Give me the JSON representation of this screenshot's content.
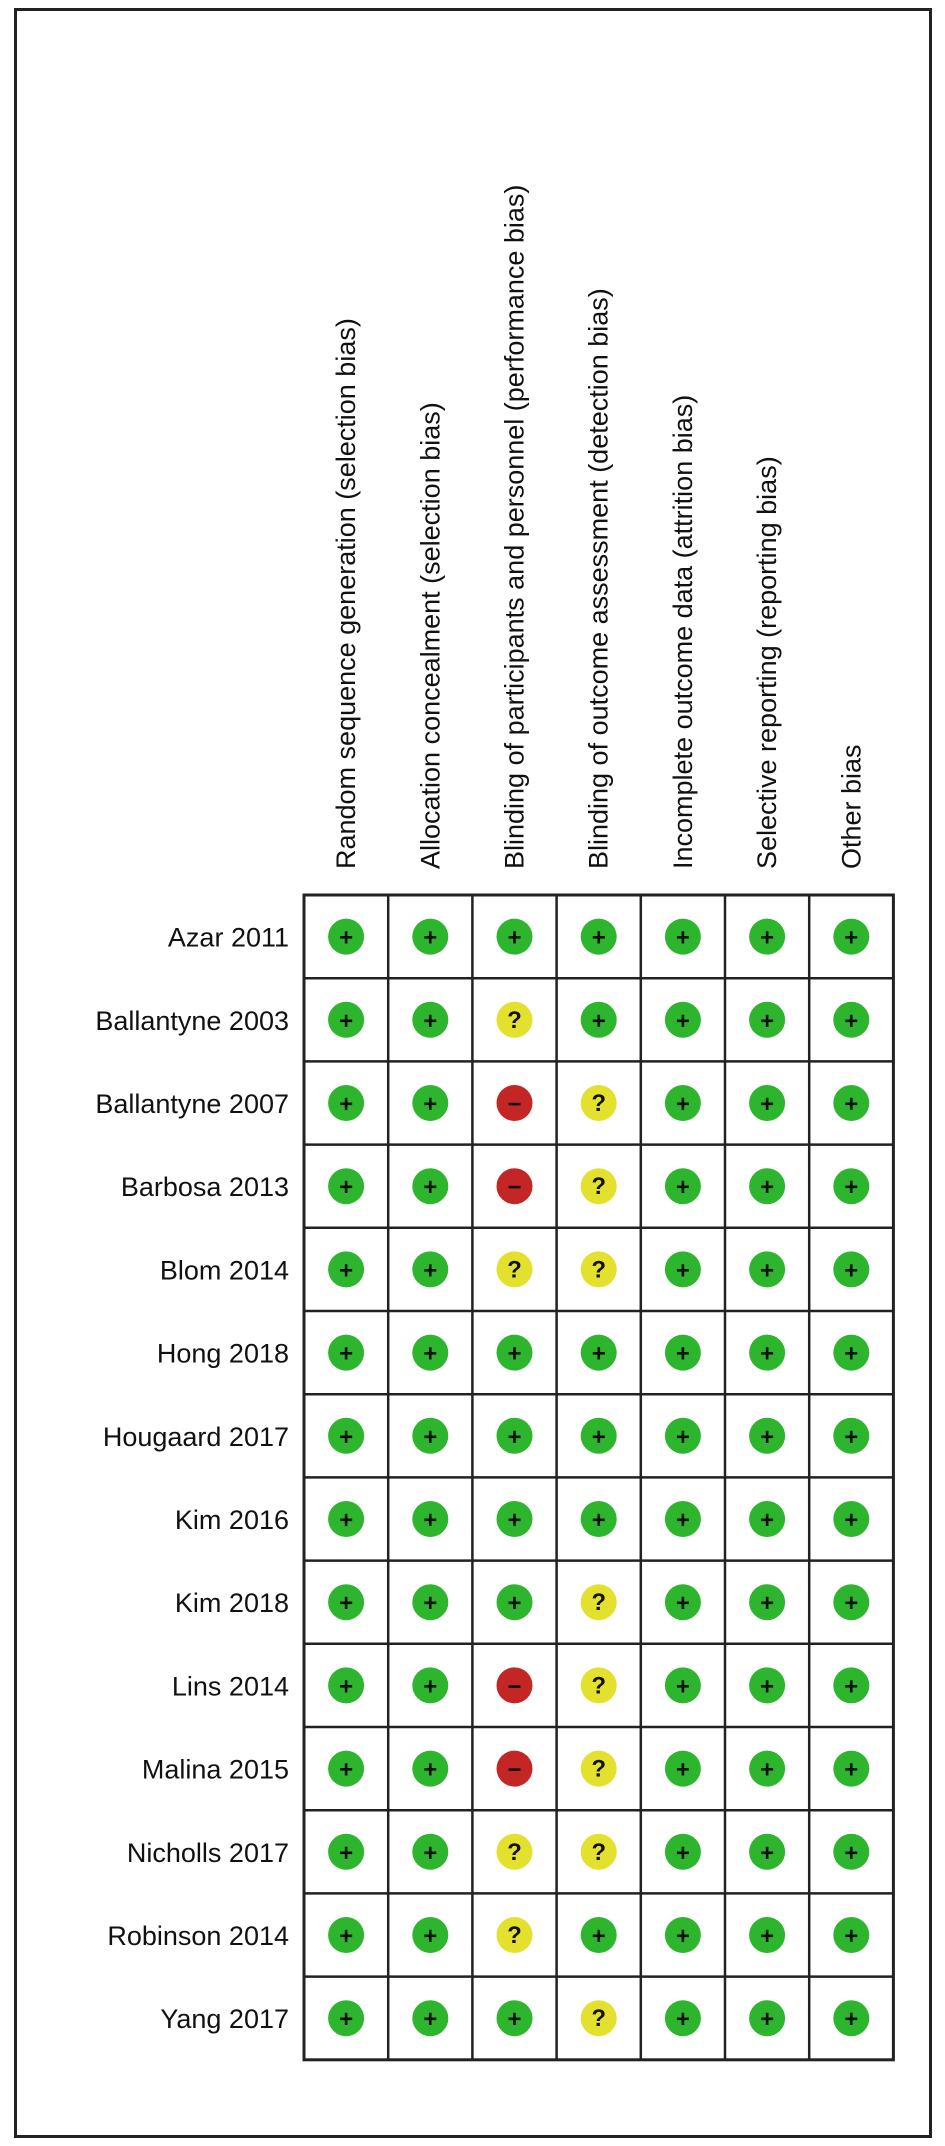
{
  "chart_data": {
    "type": "table",
    "domains": [
      "Random sequence generation (selection bias)",
      "Allocation concealment (selection bias)",
      "Blinding of participants and personnel (performance bias)",
      "Blinding of outcome assessment (detection bias)",
      "Incomplete outcome data (attrition bias)",
      "Selective reporting (reporting bias)",
      "Other bias"
    ],
    "studies": [
      {
        "name": "Azar 2011",
        "judgements": [
          "+",
          "+",
          "+",
          "+",
          "+",
          "+",
          "+"
        ]
      },
      {
        "name": "Ballantyne 2003",
        "judgements": [
          "+",
          "+",
          "?",
          "+",
          "+",
          "+",
          "+"
        ]
      },
      {
        "name": "Ballantyne 2007",
        "judgements": [
          "+",
          "+",
          "-",
          "?",
          "+",
          "+",
          "+"
        ]
      },
      {
        "name": "Barbosa 2013",
        "judgements": [
          "+",
          "+",
          "-",
          "?",
          "+",
          "+",
          "+"
        ]
      },
      {
        "name": "Blom 2014",
        "judgements": [
          "+",
          "+",
          "?",
          "?",
          "+",
          "+",
          "+"
        ]
      },
      {
        "name": "Hong 2018",
        "judgements": [
          "+",
          "+",
          "+",
          "+",
          "+",
          "+",
          "+"
        ]
      },
      {
        "name": "Hougaard 2017",
        "judgements": [
          "+",
          "+",
          "+",
          "+",
          "+",
          "+",
          "+"
        ]
      },
      {
        "name": "Kim 2016",
        "judgements": [
          "+",
          "+",
          "+",
          "+",
          "+",
          "+",
          "+"
        ]
      },
      {
        "name": "Kim 2018",
        "judgements": [
          "+",
          "+",
          "+",
          "?",
          "+",
          "+",
          "+"
        ]
      },
      {
        "name": "Lins 2014",
        "judgements": [
          "+",
          "+",
          "-",
          "?",
          "+",
          "+",
          "+"
        ]
      },
      {
        "name": "Malina 2015",
        "judgements": [
          "+",
          "+",
          "-",
          "?",
          "+",
          "+",
          "+"
        ]
      },
      {
        "name": "Nicholls 2017",
        "judgements": [
          "+",
          "+",
          "?",
          "?",
          "+",
          "+",
          "+"
        ]
      },
      {
        "name": "Robinson 2014",
        "judgements": [
          "+",
          "+",
          "?",
          "+",
          "+",
          "+",
          "+"
        ]
      },
      {
        "name": "Yang 2017",
        "judgements": [
          "+",
          "+",
          "+",
          "?",
          "+",
          "+",
          "+"
        ]
      }
    ],
    "legend_colors": {
      "+": "#2db52d",
      "?": "#e3e02e",
      "-": "#c42525"
    },
    "symbols": {
      "+": "+",
      "?": "?",
      "-": "−"
    }
  }
}
